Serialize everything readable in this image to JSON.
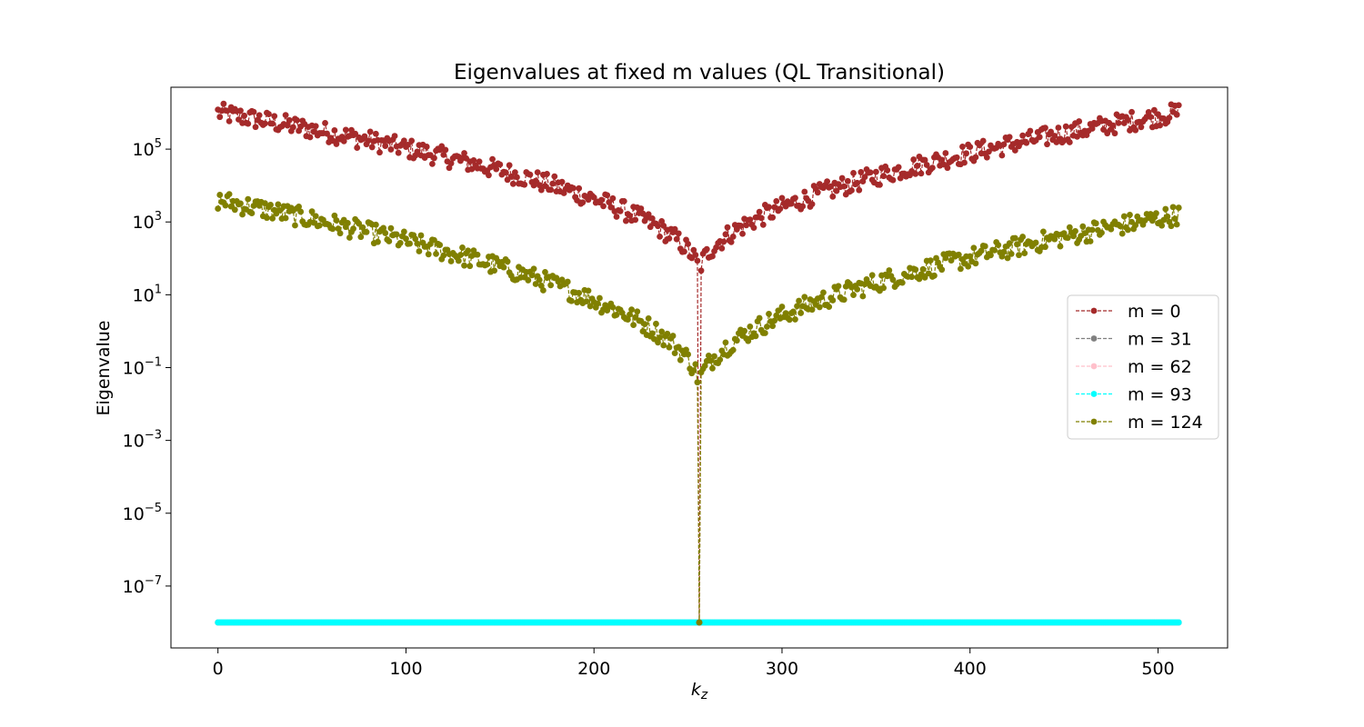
{
  "chart_data": {
    "type": "line",
    "title": "Eigenvalues at fixed m values (QL Transitional)",
    "xlabel": "k_z",
    "ylabel": "Eigenvalue",
    "xlim": [
      -25,
      537
    ],
    "ylim_log10": [
      -8.7,
      6.7
    ],
    "yscale": "log",
    "grid": false,
    "legend_position": "center-right",
    "x_ticks": [
      0,
      100,
      200,
      300,
      400,
      500
    ],
    "y_ticks": [
      {
        "base": "10",
        "exp": "5"
      },
      {
        "base": "10",
        "exp": "3"
      },
      {
        "base": "10",
        "exp": "1"
      },
      {
        "base": "10",
        "exp": "−1"
      },
      {
        "base": "10",
        "exp": "−3"
      },
      {
        "base": "10",
        "exp": "−5"
      },
      {
        "base": "10",
        "exp": "−7"
      }
    ],
    "series": [
      {
        "name": "m = 0",
        "color": "#a52a2a",
        "profile": {
          "kz_range": [
            0,
            511
          ],
          "log10_at_kz0": 6.0,
          "log10_min_at_center": 1.55,
          "center_kz": 256,
          "dip_to": 1e-08
        }
      },
      {
        "name": "m = 31",
        "color": "#808080",
        "constant_value": 1e-08
      },
      {
        "name": "m = 62",
        "color": "#ffc0cb",
        "constant_value": 1e-08
      },
      {
        "name": "m = 93",
        "color": "#00ffff",
        "constant_value": 1e-08
      },
      {
        "name": "m = 124",
        "color": "#808000",
        "profile": {
          "kz_range": [
            0,
            511
          ],
          "log10_at_kz0": 3.6,
          "log10_min_at_center": -1.55,
          "log10_at_kz511": 3.2,
          "center_kz": 256,
          "dip_to": 1e-08
        }
      }
    ]
  }
}
